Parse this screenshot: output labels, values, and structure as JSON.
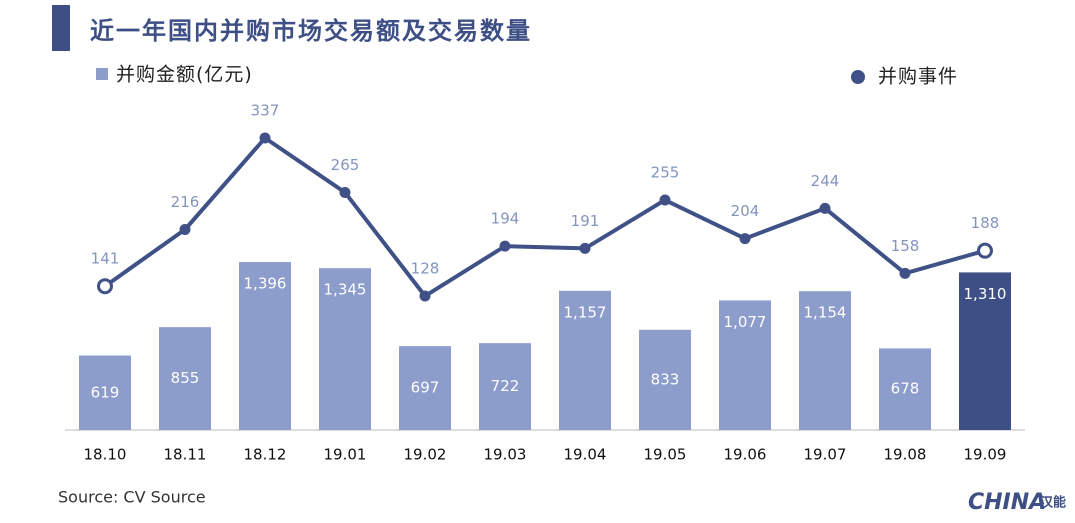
{
  "chart_data": {
    "type": "bar-line",
    "title": "近一年国内并购市场交易额及交易数量",
    "source": "Source: CV Source",
    "logo": "CHINA",
    "logo_cn": "汉能",
    "categories": [
      "18.10",
      "18.11",
      "18.12",
      "19.01",
      "19.02",
      "19.03",
      "19.04",
      "19.05",
      "19.06",
      "19.07",
      "19.08",
      "19.09"
    ],
    "series": [
      {
        "name": "并购金额(亿元)",
        "type": "bar",
        "color": "#8c9dcc",
        "colors": [
          "#8c9dcc",
          "#8c9dcc",
          "#8c9dcc",
          "#8c9dcc",
          "#8c9dcc",
          "#8c9dcc",
          "#8c9dcc",
          "#8c9dcc",
          "#8c9dcc",
          "#8c9dcc",
          "#8c9dcc",
          "#3d4f85"
        ],
        "values": [
          619,
          855,
          1396,
          1345,
          697,
          722,
          1157,
          833,
          1077,
          1154,
          678,
          1310
        ],
        "value_labels": [
          "619",
          "855",
          "1,396",
          "1,345",
          "697",
          "722",
          "1,157",
          "833",
          "1,077",
          "1,154",
          "678",
          "1,310"
        ]
      },
      {
        "name": "并购事件",
        "type": "line",
        "axis": "y2",
        "color": "#3f5187",
        "values": [
          141,
          216,
          337,
          265,
          128,
          194,
          191,
          255,
          204,
          244,
          158,
          188
        ]
      }
    ]
  }
}
